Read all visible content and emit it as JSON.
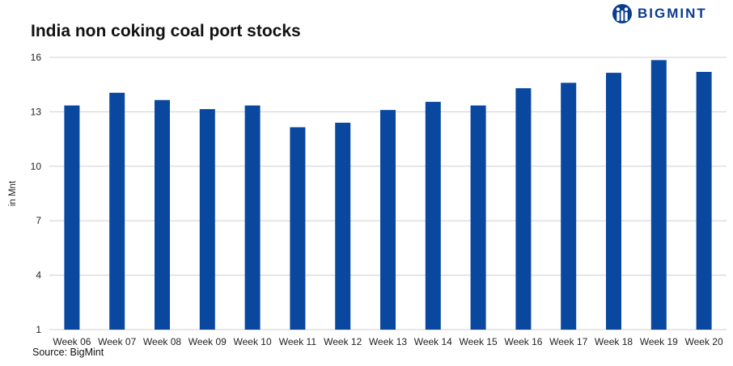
{
  "header": {
    "brand": "BIGMINT"
  },
  "footer": {
    "source": "Source: BigMint"
  },
  "colors": {
    "bar": "#0a48a0",
    "grid": "#d0d0d0",
    "brand": "#0a3d8f"
  },
  "chart_data": {
    "type": "bar",
    "title": "India non coking coal port stocks",
    "ylabel": "in Mnt",
    "xlabel": "",
    "categories": [
      "Week 06",
      "Week 07",
      "Week 08",
      "Week 09",
      "Week 10",
      "Week 11",
      "Week 12",
      "Week 13",
      "Week 14",
      "Week 15",
      "Week 16",
      "Week 17",
      "Week 18",
      "Week 19",
      "Week 20"
    ],
    "values": [
      13.35,
      14.05,
      13.65,
      13.15,
      13.35,
      12.15,
      12.4,
      13.1,
      13.55,
      13.35,
      14.3,
      14.6,
      15.15,
      15.85,
      15.2
    ],
    "ylim": [
      1,
      16
    ],
    "yticks": [
      "1",
      "4",
      "7",
      "10",
      "13",
      "16"
    ],
    "grid": true,
    "legend": "none"
  }
}
